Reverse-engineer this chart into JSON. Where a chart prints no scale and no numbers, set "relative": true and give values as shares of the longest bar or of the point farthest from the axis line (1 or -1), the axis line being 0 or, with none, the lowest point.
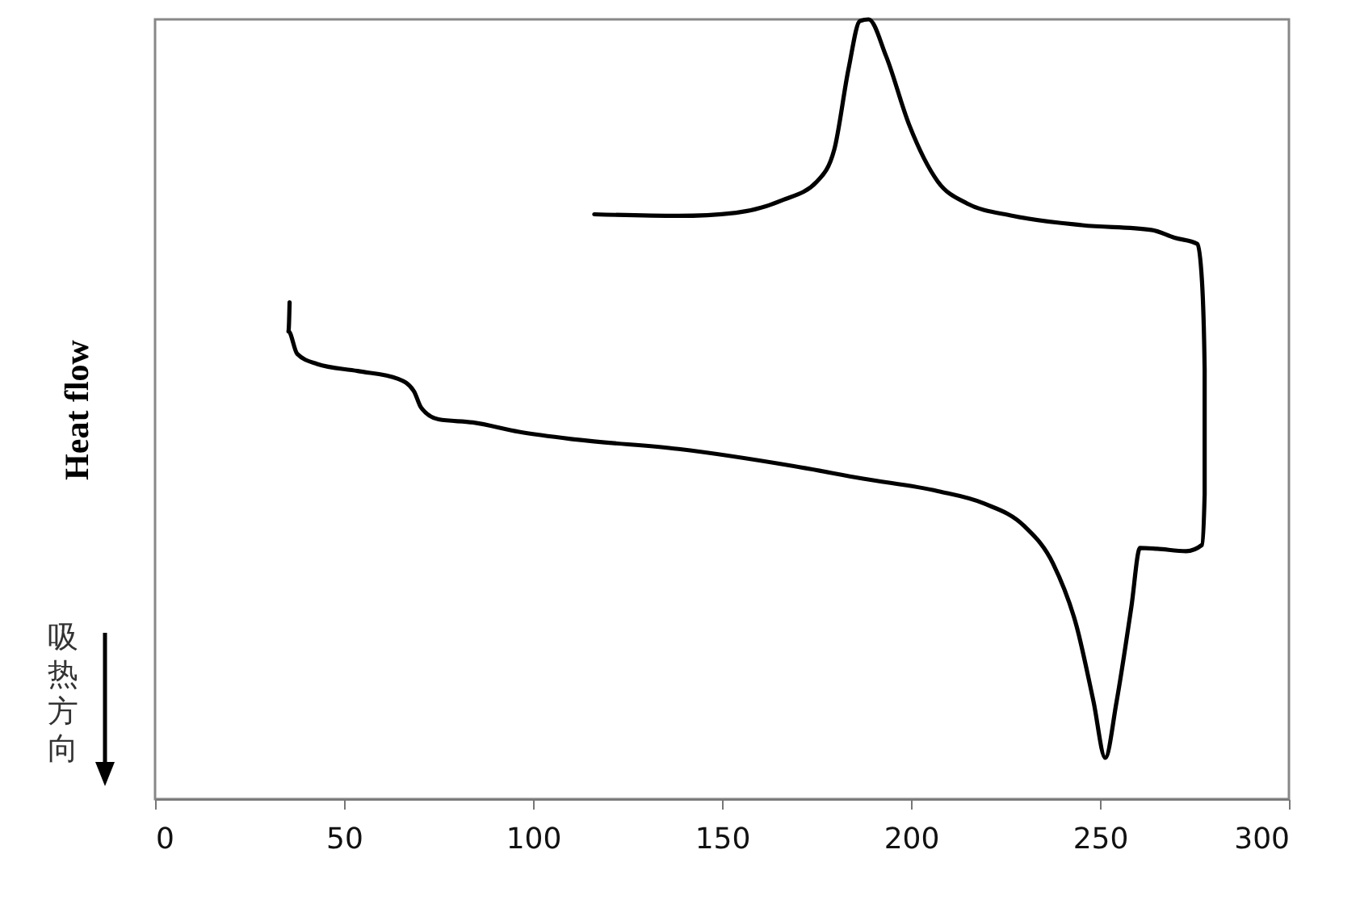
{
  "chart_data": {
    "type": "line",
    "relative": true,
    "ylabel": "Heat flow",
    "annotations": [
      "吸热方向"
    ],
    "xlim": [
      0,
      300
    ],
    "xticks": [
      0,
      50,
      100,
      150,
      200,
      250,
      300
    ],
    "grid": false,
    "marker": "none",
    "line_style": "solid",
    "series": [
      {
        "color": "#000000",
        "x": [
          35.6,
          35.3,
          37.6,
          42.9,
          53.6,
          64.3,
          68.5,
          70.4,
          75.0,
          84.1,
          96.3,
          111.6,
          138.5,
          169.0,
          187.3,
          207.1,
          219.4,
          230.0,
          237.6,
          243.8,
          248.3,
          251.4,
          254.4,
          258.3,
          260.6,
          265.1,
          272.8,
          277.0,
          277.7,
          277.7,
          277.0,
          275.8,
          269.7,
          263.6,
          245.3,
          227.0,
          214.8,
          207.1,
          199.5,
          193.4,
          188.8,
          186.5,
          183.5,
          179.7,
          175.1,
          165.9,
          153.7,
          138.5,
          116.2
        ],
        "values": [
          0.637,
          0.6,
          0.571,
          0.558,
          0.549,
          0.539,
          0.523,
          0.502,
          0.487,
          0.483,
          0.471,
          0.461,
          0.449,
          0.427,
          0.411,
          0.395,
          0.379,
          0.35,
          0.302,
          0.222,
          0.125,
          0.053,
          0.125,
          0.246,
          0.322,
          0.321,
          0.318,
          0.326,
          0.391,
          0.551,
          0.664,
          0.712,
          0.72,
          0.73,
          0.736,
          0.748,
          0.764,
          0.792,
          0.865,
          0.953,
          1,
          0.998,
          0.937,
          0.833,
          0.792,
          0.768,
          0.752,
          0.748,
          0.75
        ]
      }
    ]
  }
}
